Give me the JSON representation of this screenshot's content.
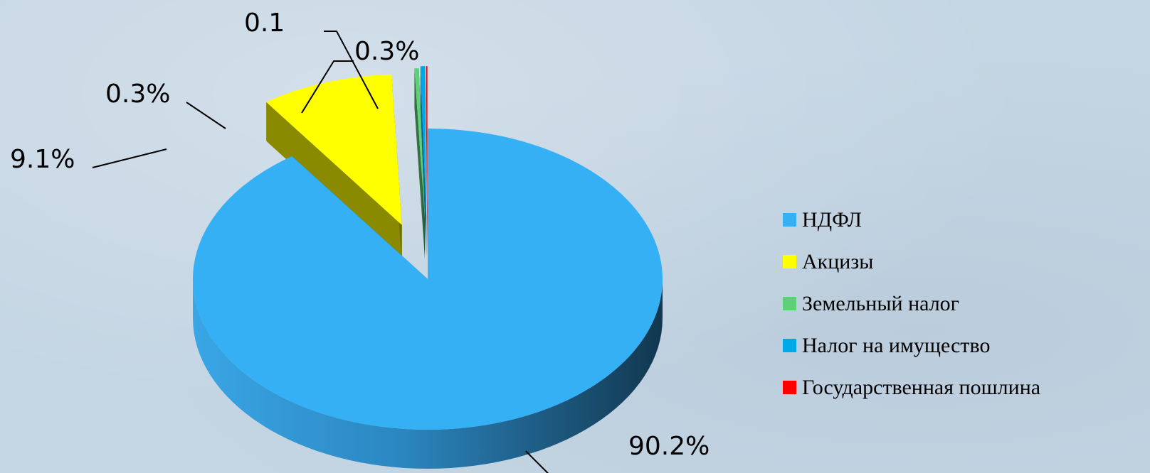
{
  "chart_data": {
    "type": "pie",
    "series": [
      {
        "name": "НДФЛ",
        "value": 90.2,
        "label": "90.2%",
        "color": "#35b0f5",
        "side_dark": "#14405e",
        "side_light": "#3aa3e0"
      },
      {
        "name": "Акцизы",
        "value": 9.1,
        "label": "9.1%",
        "color": "#ffff00",
        "side_dark": "#6e6e00",
        "side_light": "#8a8a00"
      },
      {
        "name": "Земельный налог",
        "value": 0.3,
        "label": "0.3%",
        "color": "#5fd07a",
        "side_dark": "#2a5a34",
        "side_light": "#347040"
      },
      {
        "name": "Налог на имущество",
        "value": 0.3,
        "label": "0.3%",
        "color": "#00a8e8",
        "side_dark": "#0a4d6a",
        "side_light": "#0a6a90"
      },
      {
        "name": "Государственная пошлина",
        "value": 0.1,
        "label": "0.1",
        "color": "#ff0000",
        "side_dark": "#8a0000",
        "side_light": "#b00000"
      }
    ],
    "legend_position": "right"
  }
}
